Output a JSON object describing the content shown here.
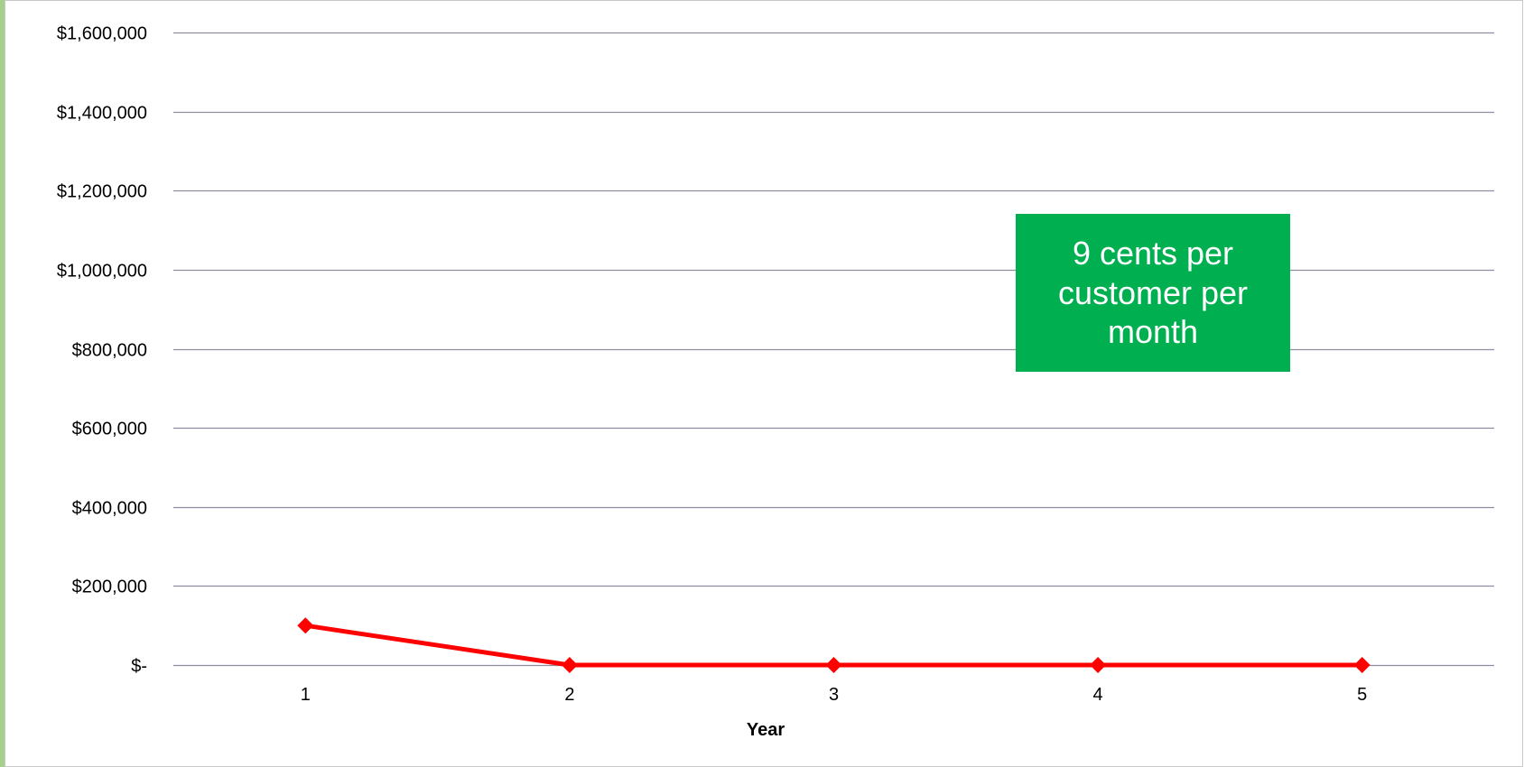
{
  "chart_data": {
    "type": "line",
    "title": "",
    "xlabel": "Year",
    "ylabel": "",
    "categories": [
      "1",
      "2",
      "3",
      "4",
      "5"
    ],
    "series": [
      {
        "values": [
          100000,
          0,
          0,
          0,
          0
        ],
        "color": "#ff0000",
        "marker": "diamond"
      }
    ],
    "ylim": [
      0,
      1600000
    ],
    "y_ticks": [
      {
        "value": 1600000,
        "label": "$1,600,000"
      },
      {
        "value": 1400000,
        "label": "$1,400,000"
      },
      {
        "value": 1200000,
        "label": "$1,200,000"
      },
      {
        "value": 1000000,
        "label": "$1,000,000"
      },
      {
        "value": 800000,
        "label": "$800,000"
      },
      {
        "value": 600000,
        "label": "$600,000"
      },
      {
        "value": 400000,
        "label": "$400,000"
      },
      {
        "value": 200000,
        "label": "$200,000"
      },
      {
        "value": 0,
        "label": "$-"
      }
    ],
    "grid": true,
    "legend": "none",
    "annotation": {
      "text": "9 cents per customer per month",
      "background": "#00b050",
      "text_color": "#ffffff"
    }
  },
  "colors": {
    "gridline": "#8e8ea0",
    "frame_border": "#c8c8c8",
    "left_accent": "#a8d08d"
  }
}
